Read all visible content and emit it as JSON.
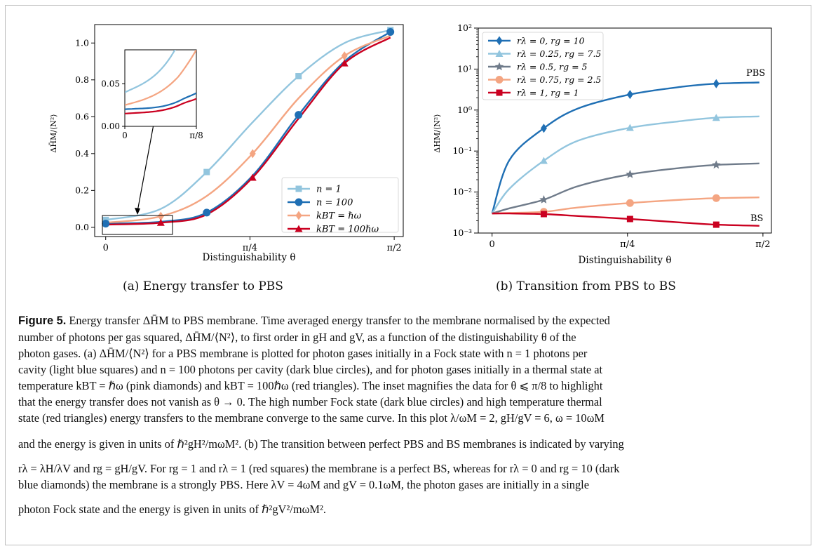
{
  "panel_a": {
    "chart_data": {
      "type": "line",
      "xlabel": "Distinguishability θ",
      "ylabel": "ΔH̄M/⟨N²⟩",
      "x_ticks": [
        "0",
        "π/4",
        "π/2"
      ],
      "y_ticks": [
        "0.0",
        "0.2",
        "0.4",
        "0.6",
        "0.8",
        "1.0"
      ],
      "xlim": [
        -0.06,
        1.62
      ],
      "ylim": [
        -0.05,
        1.1
      ],
      "legend_position": "lower-right",
      "series": [
        {
          "name": "n = 1",
          "color": "#92c5de",
          "marker": "square",
          "x": [
            0,
            0.3,
            0.55,
            0.8,
            1.05,
            1.3,
            1.55
          ],
          "y": [
            0.04,
            0.1,
            0.3,
            0.57,
            0.82,
            1.0,
            1.07
          ]
        },
        {
          "name": "n = 100",
          "color": "#1f6fb4",
          "marker": "circle",
          "x": [
            0,
            0.3,
            0.55,
            0.8,
            1.05,
            1.3,
            1.55
          ],
          "y": [
            0.02,
            0.03,
            0.08,
            0.28,
            0.61,
            0.9,
            1.06
          ]
        },
        {
          "name": "kBT = ℏω",
          "color": "#f4a582",
          "marker": "diamond",
          "x": [
            0,
            0.3,
            0.55,
            0.8,
            1.05,
            1.3,
            1.55
          ],
          "y": [
            0.025,
            0.06,
            0.17,
            0.4,
            0.7,
            0.93,
            1.04
          ]
        },
        {
          "name": "kBT = 100ℏω",
          "color": "#ca0020",
          "marker": "triangle",
          "x": [
            0,
            0.3,
            0.55,
            0.8,
            1.05,
            1.3,
            1.55
          ],
          "y": [
            0.015,
            0.025,
            0.07,
            0.27,
            0.59,
            0.89,
            1.03
          ]
        }
      ],
      "inset": {
        "x_ticks": [
          "0",
          "π/8"
        ],
        "y_ticks": [
          "0.00",
          "0.05"
        ],
        "xlim": [
          0,
          0.3927
        ],
        "ylim": [
          0,
          0.09
        ]
      }
    }
  },
  "panel_b": {
    "chart_data": {
      "type": "line",
      "xlabel": "Distinguishability θ",
      "ylabel": "ΔHM/⟨N²⟩",
      "yscale": "log",
      "x_ticks": [
        "0",
        "π/4",
        "π/2"
      ],
      "y_ticks": [
        "10⁻³",
        "10⁻²",
        "10⁻¹",
        "10⁰",
        "10¹",
        "10²"
      ],
      "xlim": [
        -0.08,
        1.62
      ],
      "ylim": [
        0.001,
        100
      ],
      "legend_position": "upper-left",
      "annotations": [
        "PBS",
        "BS"
      ],
      "series": [
        {
          "name": "rλ = 0, rg = 10",
          "color": "#1f6fb4",
          "marker": "diamond",
          "x": [
            0,
            0.1,
            0.3,
            0.5,
            0.8,
            1.1,
            1.3,
            1.55
          ],
          "y": [
            0.003,
            0.06,
            0.36,
            1.1,
            2.4,
            3.7,
            4.4,
            4.7
          ]
        },
        {
          "name": "rλ = 0.25, rg = 7.5",
          "color": "#92c5de",
          "marker": "triangle",
          "x": [
            0,
            0.1,
            0.3,
            0.5,
            0.8,
            1.1,
            1.3,
            1.55
          ],
          "y": [
            0.003,
            0.012,
            0.058,
            0.18,
            0.37,
            0.54,
            0.65,
            0.7
          ]
        },
        {
          "name": "rλ = 0.5, rg = 5",
          "color": "#6f7b8a",
          "marker": "star",
          "x": [
            0,
            0.1,
            0.3,
            0.5,
            0.8,
            1.1,
            1.3,
            1.55
          ],
          "y": [
            0.003,
            0.004,
            0.0065,
            0.014,
            0.027,
            0.039,
            0.046,
            0.05
          ]
        },
        {
          "name": "rλ = 0.75, rg = 2.5",
          "color": "#f4a582",
          "marker": "circle",
          "x": [
            0,
            0.1,
            0.3,
            0.5,
            0.8,
            1.1,
            1.3,
            1.55
          ],
          "y": [
            0.003,
            0.0031,
            0.0033,
            0.0042,
            0.0054,
            0.0065,
            0.0071,
            0.0074
          ]
        },
        {
          "name": "rλ = 1, rg = 1",
          "color": "#ca0020",
          "marker": "square",
          "x": [
            0,
            0.1,
            0.3,
            0.5,
            0.8,
            1.1,
            1.3,
            1.55
          ],
          "y": [
            0.003,
            0.003,
            0.0029,
            0.0026,
            0.0022,
            0.0018,
            0.0016,
            0.0015
          ]
        }
      ]
    }
  },
  "subcaptions": {
    "a": "(a) Energy transfer to PBS",
    "b": "(b) Transition from PBS to BS"
  },
  "caption": {
    "label": "Figure 5.",
    "title": "Energy transfer ΔH̄M to PBS membrane.",
    "line1": "Time averaged energy transfer to the membrane normalised by the expected",
    "line2": "number of photons per gas squared, ΔH̄M/⟨N²⟩, to first order in gH and gV, as a function of the distinguishability θ of the",
    "line3": "photon gases. (a) ΔH̄M/⟨N²⟩ for a PBS membrane is plotted for photon gases initially in a Fock state with n = 1 photons per",
    "line4": "cavity (light blue squares) and n = 100 photons per cavity (dark blue circles), and for photon gases initially in a thermal state at",
    "line5": "temperature kBT = ℏω (pink diamonds) and kBT = 100ℏω (red triangles). The inset magnifies the data for θ ⩽ π/8 to highlight",
    "line6": "that the energy transfer does not vanish as θ → 0. The high number Fock state (dark blue circles) and high temperature thermal",
    "line7": "state (red triangles) energy transfers to the membrane converge to the same curve. In this plot λ/ωM = 2, gH/gV = 6, ω = 10ωM",
    "line8": "and the energy is given in units of ℏ²gH²/mωM². (b) The transition between perfect PBS and BS membranes is indicated by varying",
    "line9": "rλ = λH/λV and rg = gH/gV. For rg = 1 and rλ = 1 (red squares) the membrane is a perfect BS, whereas for rλ = 0 and rg = 10 (dark",
    "line10": "blue diamonds) the membrane is a strongly PBS. Here λV = 4ωM and gV = 0.1ωM, the photon gases are initially in a single",
    "line11": "photon Fock state and the energy is given in units of ℏ²gV²/mωM²."
  }
}
